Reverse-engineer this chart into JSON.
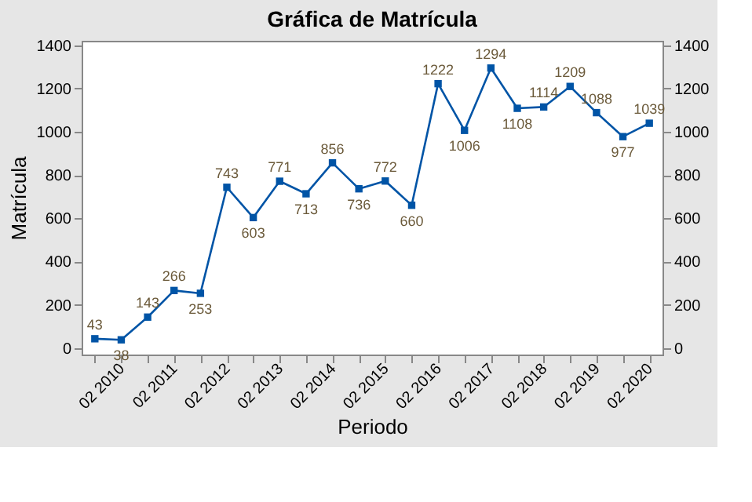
{
  "chart_data": {
    "type": "line",
    "title": "Gráfica de Matrícula",
    "xlabel": "Periodo",
    "ylabel": "Matrícula",
    "categories": [
      null,
      "02 2010",
      null,
      "02 2011",
      null,
      "02 2012",
      null,
      "02 2013",
      null,
      "02 2014",
      null,
      "02 2015",
      null,
      "02 2016",
      null,
      "02 2017",
      null,
      "02 2018",
      null,
      "02 2019",
      null,
      "02 2020"
    ],
    "series": [
      {
        "color": "#0054a6",
        "values": [
          43,
          38,
          143,
          266,
          253,
          743,
          603,
          771,
          713,
          856,
          736,
          772,
          660,
          1222,
          1006,
          1294,
          1108,
          1114,
          1209,
          1088,
          977,
          1039
        ]
      }
    ],
    "ylim": [
      -30,
      1420
    ],
    "yticks": [
      0,
      200,
      400,
      600,
      800,
      1000,
      1200,
      1400
    ],
    "y2lim": [
      -30,
      1420
    ],
    "y2ticks": [
      0,
      200,
      400,
      600,
      800,
      1000,
      1200,
      1400
    ],
    "marker": "square",
    "line_style": "solid",
    "data_labels": true,
    "grid": false,
    "legend": false
  }
}
